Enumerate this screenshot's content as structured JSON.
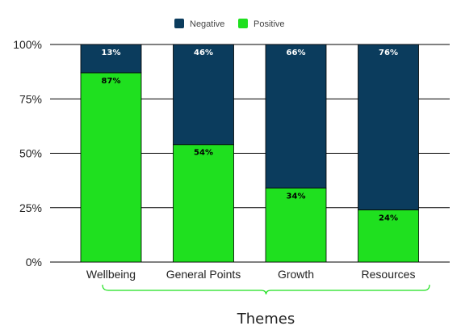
{
  "chart_data": {
    "type": "bar",
    "stacked": true,
    "categories": [
      "Wellbeing",
      "General Points",
      "Growth",
      "Resources"
    ],
    "series": [
      {
        "name": "Positive",
        "values": [
          87,
          54,
          34,
          24
        ],
        "labels": [
          "87%",
          "54%",
          "34%",
          "24%"
        ],
        "color": "#1fe01f",
        "label_color": "#000000"
      },
      {
        "name": "Negative",
        "values": [
          13,
          46,
          66,
          76
        ],
        "labels": [
          "13%",
          "46%",
          "66%",
          "76%"
        ],
        "color": "#0b3c5d",
        "label_color": "#ffffff"
      }
    ],
    "y_ticks": [
      0,
      25,
      50,
      75,
      100
    ],
    "y_tick_labels": [
      "0%",
      "25%",
      "50%",
      "75%",
      "100%"
    ],
    "ylim": [
      0,
      100
    ],
    "xlabel": "Themes",
    "ylabel": "",
    "title": "",
    "grid": true,
    "legend_position": "top-center",
    "legend_order": [
      "Negative",
      "Positive"
    ],
    "bracket_color": "#1fe01f"
  }
}
